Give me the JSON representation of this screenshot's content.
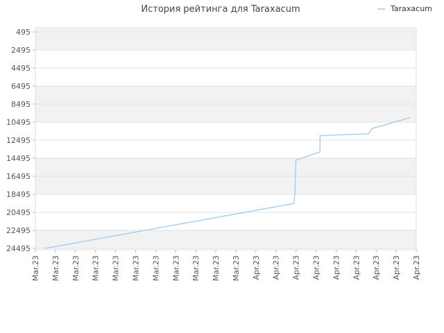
{
  "chart_data": {
    "type": "line",
    "title": "История рейтинга для Taraxacum",
    "xlabel": "",
    "ylabel": "",
    "legend_position": "top-right",
    "grid": true,
    "y_inverted": true,
    "ylim": [
      24495,
      495
    ],
    "y_ticks": [
      495,
      2495,
      4495,
      6495,
      8495,
      10495,
      12495,
      14495,
      16495,
      18495,
      20495,
      22495,
      24495
    ],
    "x_tick_labels": [
      "Mar.23",
      "Mar.23",
      "Mar.23",
      "Mar.23",
      "Mar.23",
      "Mar.23",
      "Mar.23",
      "Mar.23",
      "Mar.23",
      "Mar.23",
      "Mar.23",
      "Apr.23",
      "Apr.23",
      "Apr.23",
      "Apr.23",
      "Apr.23",
      "Apr.23",
      "Apr.23",
      "Apr.23",
      "Apr.23"
    ],
    "x_range": [
      0,
      19
    ],
    "series": [
      {
        "name": "Taraxacum",
        "color": "#9ec9ef",
        "points": [
          [
            0.5,
            24495
          ],
          [
            12.9,
            19520
          ],
          [
            12.95,
            18200
          ],
          [
            13.0,
            14700
          ],
          [
            14.2,
            13800
          ],
          [
            14.2,
            12000
          ],
          [
            15.5,
            11870
          ],
          [
            16.6,
            11800
          ],
          [
            16.8,
            11200
          ],
          [
            18.7,
            10000
          ]
        ]
      }
    ]
  }
}
